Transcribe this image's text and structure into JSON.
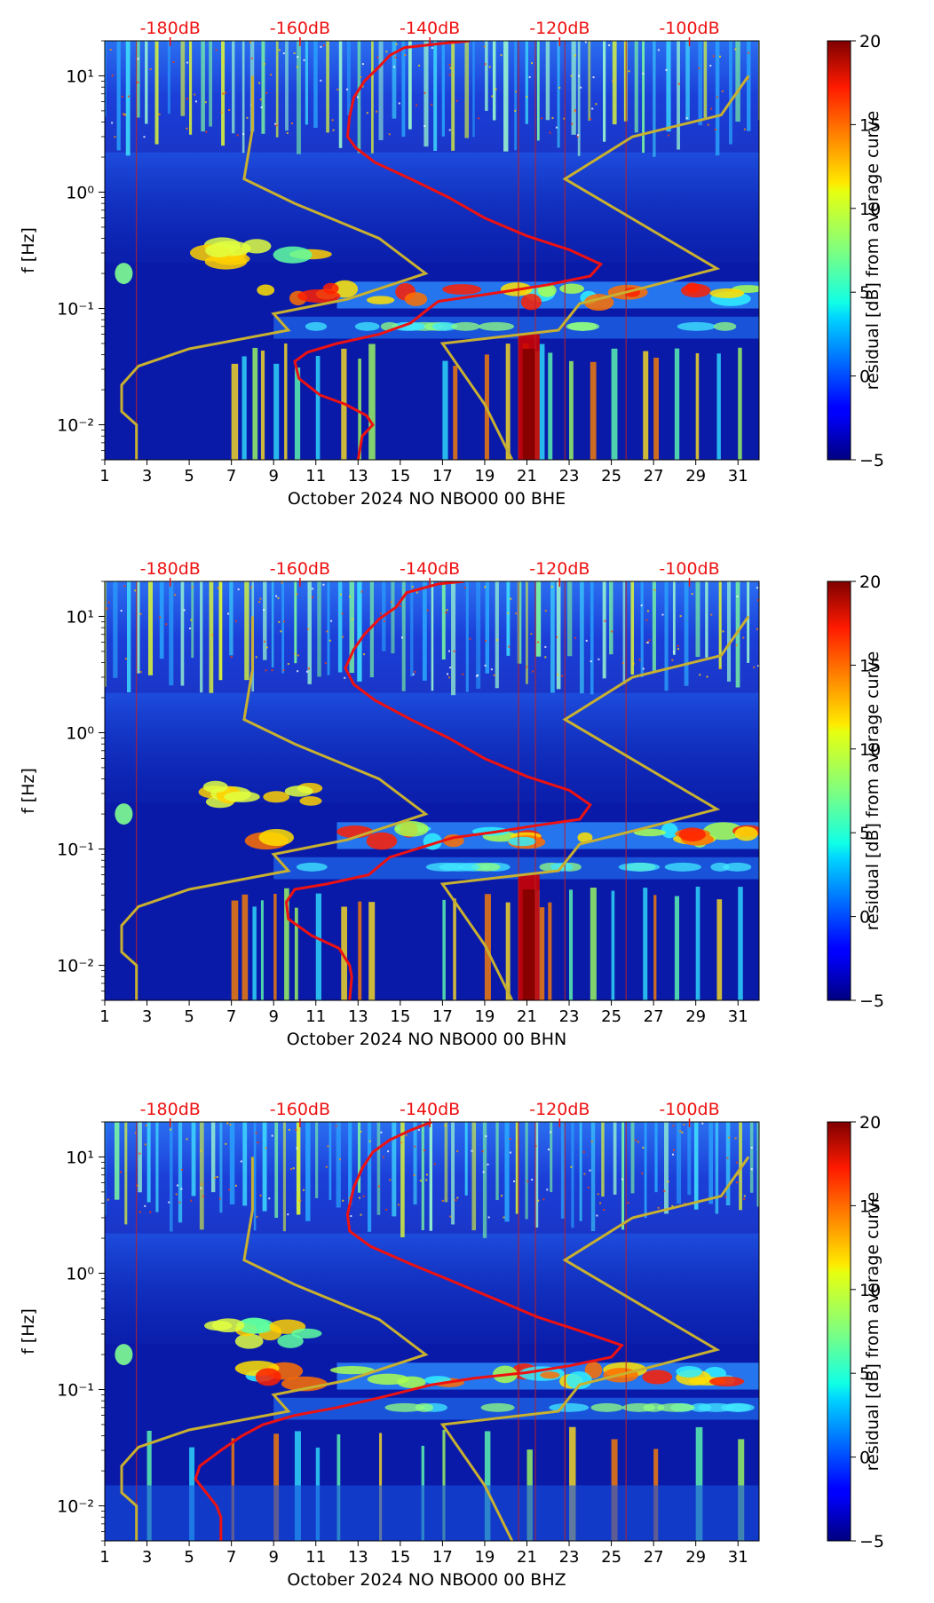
{
  "chart_data": [
    {
      "type": "heatmap",
      "xlabel": "October 2024 NO NBO00 00 BHE",
      "ylabel": "f [Hz]",
      "x_ticks": [
        "1",
        "3",
        "5",
        "7",
        "9",
        "11",
        "13",
        "15",
        "17",
        "19",
        "21",
        "23",
        "25",
        "27",
        "29",
        "31"
      ],
      "y_ticks": [
        "10⁻²",
        "10⁻¹",
        "10⁰",
        "10¹"
      ],
      "top_ticks": [
        "-180dB",
        "-160dB",
        "-140dB",
        "-120dB",
        "-100dB"
      ],
      "xlim": [
        1,
        32
      ],
      "ylim": [
        0.005,
        20
      ],
      "colorbar": {
        "label": "residual [dB] from average curve",
        "ticks": [
          "-5",
          "0",
          "5",
          "10",
          "15",
          "20"
        ],
        "range": [
          -5,
          20
        ]
      },
      "vertical_lines_day": [
        2.5,
        20.6,
        21.4,
        22.8,
        25.7
      ],
      "red_curve": {
        "name": "average PSD",
        "points": [
          [
            18.3,
            20
          ],
          [
            17.0,
            19
          ],
          [
            15.2,
            17.5
          ],
          [
            14.5,
            15
          ],
          [
            14.0,
            12
          ],
          [
            13.3,
            9
          ],
          [
            12.8,
            6.5
          ],
          [
            12.6,
            4.5
          ],
          [
            12.5,
            3.0
          ],
          [
            12.9,
            2.4
          ],
          [
            13.8,
            1.8
          ],
          [
            15.5,
            1.3
          ],
          [
            17.3,
            0.9
          ],
          [
            19.0,
            0.6
          ],
          [
            21.0,
            0.42
          ],
          [
            23.0,
            0.32
          ],
          [
            24.5,
            0.24
          ],
          [
            24.0,
            0.19
          ],
          [
            22.0,
            0.16
          ],
          [
            20.0,
            0.14
          ],
          [
            17.5,
            0.12
          ],
          [
            16.8,
            0.115
          ],
          [
            16.2,
            0.095
          ],
          [
            15.5,
            0.075
          ],
          [
            14.0,
            0.06
          ],
          [
            12.0,
            0.05
          ],
          [
            10.6,
            0.042
          ],
          [
            10.0,
            0.035
          ],
          [
            10.2,
            0.025
          ],
          [
            11.2,
            0.018
          ],
          [
            12.4,
            0.015
          ],
          [
            13.4,
            0.012
          ],
          [
            13.7,
            0.01
          ],
          [
            13.2,
            0.008
          ],
          [
            13.0,
            0.005
          ]
        ]
      },
      "yellow_curves": [
        {
          "name": "low noise model",
          "points": [
            [
              8.0,
              10
            ],
            [
              8.0,
              3.5
            ],
            [
              7.6,
              1.3
            ],
            [
              10.0,
              0.8
            ],
            [
              14.0,
              0.4
            ],
            [
              16.2,
              0.2
            ],
            [
              12.5,
              0.12
            ],
            [
              9.0,
              0.09
            ],
            [
              9.7,
              0.065
            ],
            [
              5.0,
              0.045
            ],
            [
              2.6,
              0.032
            ],
            [
              1.8,
              0.022
            ],
            [
              1.8,
              0.013
            ],
            [
              2.5,
              0.01
            ],
            [
              2.5,
              0.005
            ]
          ]
        },
        {
          "name": "high noise model",
          "points": [
            [
              31.5,
              10
            ],
            [
              30.2,
              4.6
            ],
            [
              26.0,
              3.0
            ],
            [
              22.8,
              1.3
            ],
            [
              30.0,
              0.22
            ],
            [
              26.5,
              0.15
            ],
            [
              23.5,
              0.11
            ],
            [
              22.5,
              0.065
            ],
            [
              17.0,
              0.05
            ],
            [
              19.0,
              0.015
            ],
            [
              20.3,
              0.005
            ]
          ]
        }
      ]
    },
    {
      "type": "heatmap",
      "xlabel": "October 2024 NO NBO00 00 BHN",
      "ylabel": "f [Hz]",
      "x_ticks": [
        "1",
        "3",
        "5",
        "7",
        "9",
        "11",
        "13",
        "15",
        "17",
        "19",
        "21",
        "23",
        "25",
        "27",
        "29",
        "31"
      ],
      "y_ticks": [
        "10⁻²",
        "10⁻¹",
        "10⁰",
        "10¹"
      ],
      "top_ticks": [
        "-180dB",
        "-160dB",
        "-140dB",
        "-120dB",
        "-100dB"
      ],
      "xlim": [
        1,
        32
      ],
      "ylim": [
        0.005,
        20
      ],
      "colorbar": {
        "label": "residual [dB] from average curve",
        "ticks": [
          "-5",
          "0",
          "5",
          "10",
          "15",
          "20"
        ],
        "range": [
          -5,
          20
        ]
      },
      "vertical_lines_day": [
        2.5,
        20.6,
        21.4,
        22.8,
        25.7
      ],
      "red_curve": {
        "name": "average PSD",
        "points": [
          [
            18.0,
            20
          ],
          [
            16.8,
            19
          ],
          [
            15.3,
            16
          ],
          [
            14.8,
            12
          ],
          [
            14.0,
            9.5
          ],
          [
            13.3,
            7
          ],
          [
            12.8,
            5.2
          ],
          [
            12.4,
            3.6
          ],
          [
            12.8,
            2.6
          ],
          [
            13.8,
            1.9
          ],
          [
            15.5,
            1.3
          ],
          [
            17.3,
            0.9
          ],
          [
            19.0,
            0.6
          ],
          [
            21.0,
            0.42
          ],
          [
            23.0,
            0.32
          ],
          [
            24.0,
            0.24
          ],
          [
            23.5,
            0.18
          ],
          [
            21.5,
            0.16
          ],
          [
            19.5,
            0.14
          ],
          [
            17.5,
            0.125
          ],
          [
            16.5,
            0.11
          ],
          [
            14.5,
            0.085
          ],
          [
            13.5,
            0.06
          ],
          [
            11.5,
            0.05
          ],
          [
            10.0,
            0.045
          ],
          [
            9.6,
            0.035
          ],
          [
            9.7,
            0.025
          ],
          [
            10.8,
            0.018
          ],
          [
            12.1,
            0.014
          ],
          [
            12.6,
            0.01
          ],
          [
            12.7,
            0.008
          ],
          [
            12.6,
            0.005
          ]
        ]
      },
      "yellow_curves": [
        {
          "name": "low noise model",
          "points": [
            [
              8.0,
              10
            ],
            [
              8.0,
              3.5
            ],
            [
              7.6,
              1.3
            ],
            [
              10.0,
              0.8
            ],
            [
              14.0,
              0.4
            ],
            [
              16.2,
              0.2
            ],
            [
              12.5,
              0.12
            ],
            [
              9.0,
              0.09
            ],
            [
              9.7,
              0.065
            ],
            [
              5.0,
              0.045
            ],
            [
              2.6,
              0.032
            ],
            [
              1.8,
              0.022
            ],
            [
              1.8,
              0.013
            ],
            [
              2.5,
              0.01
            ],
            [
              2.5,
              0.005
            ]
          ]
        },
        {
          "name": "high noise model",
          "points": [
            [
              31.5,
              10
            ],
            [
              30.2,
              4.6
            ],
            [
              26.0,
              3.0
            ],
            [
              22.8,
              1.3
            ],
            [
              30.0,
              0.22
            ],
            [
              26.5,
              0.15
            ],
            [
              23.5,
              0.11
            ],
            [
              22.5,
              0.065
            ],
            [
              17.0,
              0.05
            ],
            [
              19.0,
              0.015
            ],
            [
              20.3,
              0.005
            ]
          ]
        }
      ]
    },
    {
      "type": "heatmap",
      "xlabel": "October 2024 NO NBO00 00 BHZ",
      "ylabel": "f [Hz]",
      "x_ticks": [
        "1",
        "3",
        "5",
        "7",
        "9",
        "11",
        "13",
        "15",
        "17",
        "19",
        "21",
        "23",
        "25",
        "27",
        "29",
        "31"
      ],
      "y_ticks": [
        "10⁻²",
        "10⁻¹",
        "10⁰",
        "10¹"
      ],
      "top_ticks": [
        "-180dB",
        "-160dB",
        "-140dB",
        "-120dB",
        "-100dB"
      ],
      "xlim": [
        1,
        32
      ],
      "ylim": [
        0.005,
        20
      ],
      "colorbar": {
        "label": "residual [dB] from average curve",
        "ticks": [
          "-5",
          "0",
          "5",
          "10",
          "15",
          "20"
        ],
        "range": [
          -5,
          20
        ]
      },
      "vertical_lines_day": [
        2.5,
        20.6,
        21.4,
        22.8,
        25.7
      ],
      "red_curve": {
        "name": "average PSD",
        "points": [
          [
            16.5,
            20
          ],
          [
            15.5,
            17
          ],
          [
            14.5,
            14
          ],
          [
            13.7,
            11
          ],
          [
            13.2,
            8
          ],
          [
            12.8,
            5.5
          ],
          [
            12.5,
            3.2
          ],
          [
            12.6,
            2.3
          ],
          [
            13.6,
            1.7
          ],
          [
            15.5,
            1.2
          ],
          [
            17.5,
            0.85
          ],
          [
            19.5,
            0.6
          ],
          [
            21.5,
            0.42
          ],
          [
            23.5,
            0.32
          ],
          [
            25.5,
            0.24
          ],
          [
            25.0,
            0.19
          ],
          [
            23.0,
            0.16
          ],
          [
            21.0,
            0.14
          ],
          [
            18.5,
            0.125
          ],
          [
            16.5,
            0.11
          ],
          [
            14.0,
            0.085
          ],
          [
            12.0,
            0.07
          ],
          [
            10.0,
            0.06
          ],
          [
            8.5,
            0.05
          ],
          [
            7.5,
            0.04
          ],
          [
            6.5,
            0.03
          ],
          [
            5.5,
            0.022
          ],
          [
            5.3,
            0.017
          ],
          [
            5.8,
            0.013
          ],
          [
            6.3,
            0.01
          ],
          [
            6.5,
            0.008
          ],
          [
            6.5,
            0.005
          ]
        ]
      },
      "yellow_curves": [
        {
          "name": "low noise model",
          "points": [
            [
              8.0,
              10
            ],
            [
              8.0,
              3.5
            ],
            [
              7.6,
              1.3
            ],
            [
              10.0,
              0.8
            ],
            [
              14.0,
              0.4
            ],
            [
              16.2,
              0.2
            ],
            [
              12.5,
              0.12
            ],
            [
              9.0,
              0.09
            ],
            [
              9.7,
              0.065
            ],
            [
              5.0,
              0.045
            ],
            [
              2.6,
              0.032
            ],
            [
              1.8,
              0.022
            ],
            [
              1.8,
              0.013
            ],
            [
              2.5,
              0.01
            ],
            [
              2.5,
              0.005
            ]
          ]
        },
        {
          "name": "high noise model",
          "points": [
            [
              31.5,
              10
            ],
            [
              30.2,
              4.6
            ],
            [
              26.0,
              3.0
            ],
            [
              22.8,
              1.3
            ],
            [
              30.0,
              0.22
            ],
            [
              26.5,
              0.15
            ],
            [
              23.5,
              0.11
            ],
            [
              22.5,
              0.065
            ],
            [
              17.0,
              0.05
            ],
            [
              19.0,
              0.015
            ],
            [
              20.3,
              0.005
            ]
          ]
        }
      ]
    }
  ],
  "colors": {
    "background_field": "#0a1aa8",
    "red_curve": "#ee1111",
    "yellow_curve": "#c8b030",
    "top_tick_text": "#ee1111",
    "axis": "#000000"
  }
}
